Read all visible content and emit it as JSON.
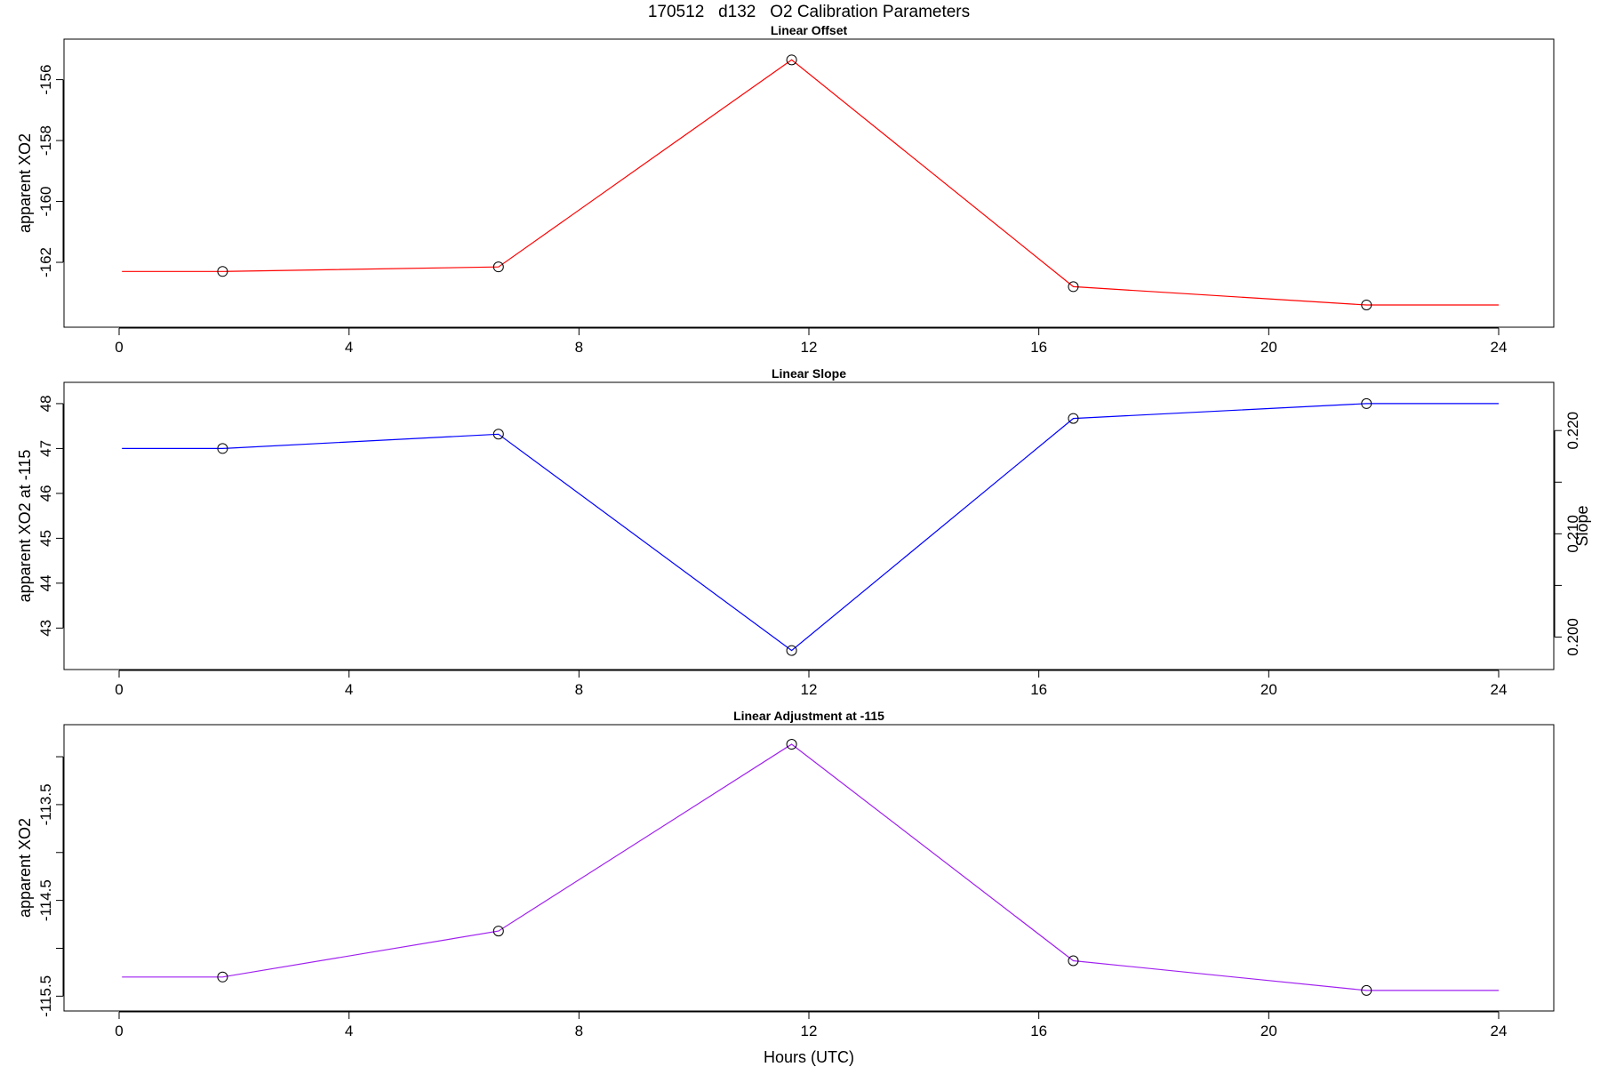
{
  "figure_title": "170512   d132   O2 Calibration Parameters",
  "x_axis": {
    "label": "Hours (UTC)",
    "ticks": [
      0,
      4,
      8,
      12,
      16,
      20,
      24
    ],
    "range": [
      0,
      24
    ]
  },
  "chart_data": [
    {
      "type": "line",
      "title": "Linear Offset",
      "xlabel": "",
      "ylabel": "apparent XO2",
      "color": "#ff0000",
      "ylim": [
        -163.8,
        -155.0
      ],
      "yticks": [
        -162,
        -160,
        -158,
        -156
      ],
      "ytick_labels": [
        "-162",
        "-160",
        "-158",
        "-156"
      ],
      "x": [
        0.05,
        1.8,
        6.6,
        11.7,
        16.6,
        21.7,
        24.0
      ],
      "y": [
        -162.3,
        -162.3,
        -162.15,
        -155.35,
        -162.8,
        -163.4,
        -163.4
      ],
      "markers": [
        1,
        2,
        3,
        4,
        5
      ],
      "grid": false
    },
    {
      "type": "line",
      "title": "Linear Slope",
      "xlabel": "",
      "ylabel": "apparent XO2 at -115",
      "color": "#0000ff",
      "ylim": [
        42.3,
        48.25
      ],
      "yticks": [
        43,
        44,
        45,
        46,
        47,
        48
      ],
      "ytick_labels": [
        "43",
        "44",
        "45",
        "46",
        "47",
        "48"
      ],
      "secondary_axis": {
        "label": "Slope",
        "ticks": [
          0.2,
          0.205,
          0.21,
          0.215,
          0.22
        ],
        "labeled": [
          "0.200",
          "",
          "0.210",
          "",
          "0.220"
        ]
      },
      "x": [
        0.05,
        1.8,
        6.6,
        11.7,
        16.6,
        21.7,
        24.0
      ],
      "y": [
        47.0,
        47.0,
        47.32,
        42.5,
        47.67,
        48.0,
        48.0
      ],
      "markers": [
        1,
        2,
        3,
        4,
        5
      ],
      "grid": false
    },
    {
      "type": "line",
      "title": "Linear Adjustment at -115",
      "xlabel": "Hours (UTC)",
      "ylabel": "apparent XO2",
      "color": "#a020f0",
      "ylim": [
        -115.55,
        -112.77
      ],
      "yticks": [
        -115.5,
        -115.0,
        -114.5,
        -114.0,
        -113.5,
        -113.0
      ],
      "ytick_labels": [
        "-115.5",
        "",
        "-114.5",
        "",
        "-113.5",
        ""
      ],
      "x": [
        0.05,
        1.8,
        6.6,
        11.7,
        16.6,
        21.7,
        24.0
      ],
      "y": [
        -115.3,
        -115.3,
        -114.82,
        -112.87,
        -115.13,
        -115.44,
        -115.44
      ],
      "markers": [
        1,
        2,
        3,
        4,
        5
      ],
      "grid": false
    }
  ]
}
